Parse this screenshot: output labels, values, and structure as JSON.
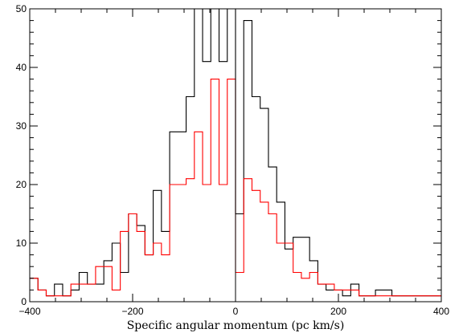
{
  "chart_data": {
    "type": "histogram",
    "xlabel": "Specific angular momentum (pc km/s)",
    "ylabel": "",
    "title": "",
    "xlim": [
      -400,
      400
    ],
    "ylim": [
      0,
      50
    ],
    "bin_width": 16,
    "bin_start": -400,
    "x_ticks": [
      -400,
      -200,
      0,
      200,
      400
    ],
    "x_tick_labels": [
      "−400",
      "−200",
      "0",
      "200",
      "400"
    ],
    "y_ticks": [
      0,
      10,
      20,
      30,
      40,
      50
    ],
    "y_tick_labels": [
      "0",
      "10",
      "20",
      "30",
      "40",
      "50"
    ],
    "vertical_line_x": 0,
    "series": [
      {
        "color": "#000000",
        "values": [
          4,
          2,
          1,
          3,
          1,
          2,
          5,
          3,
          3,
          7,
          10,
          5,
          15,
          13,
          8,
          19,
          12,
          29,
          29,
          35,
          50,
          41,
          50,
          41,
          50,
          15,
          48,
          35,
          33,
          23,
          17,
          9,
          11,
          11,
          7,
          3,
          2,
          2,
          1,
          3,
          1,
          1,
          2,
          2,
          1,
          1,
          1,
          1,
          1,
          1
        ]
      },
      {
        "color": "#ff0000",
        "values": [
          4,
          2,
          1,
          1,
          1,
          3,
          3,
          3,
          6,
          6,
          2,
          12,
          15,
          12,
          8,
          10,
          8,
          20,
          20,
          21,
          29,
          20,
          38,
          20,
          38,
          5,
          21,
          19,
          17,
          15,
          10,
          10,
          5,
          4,
          5,
          3,
          3,
          2,
          2,
          2,
          1,
          1,
          1,
          1,
          1,
          1,
          1,
          1,
          1,
          1
        ]
      }
    ]
  }
}
